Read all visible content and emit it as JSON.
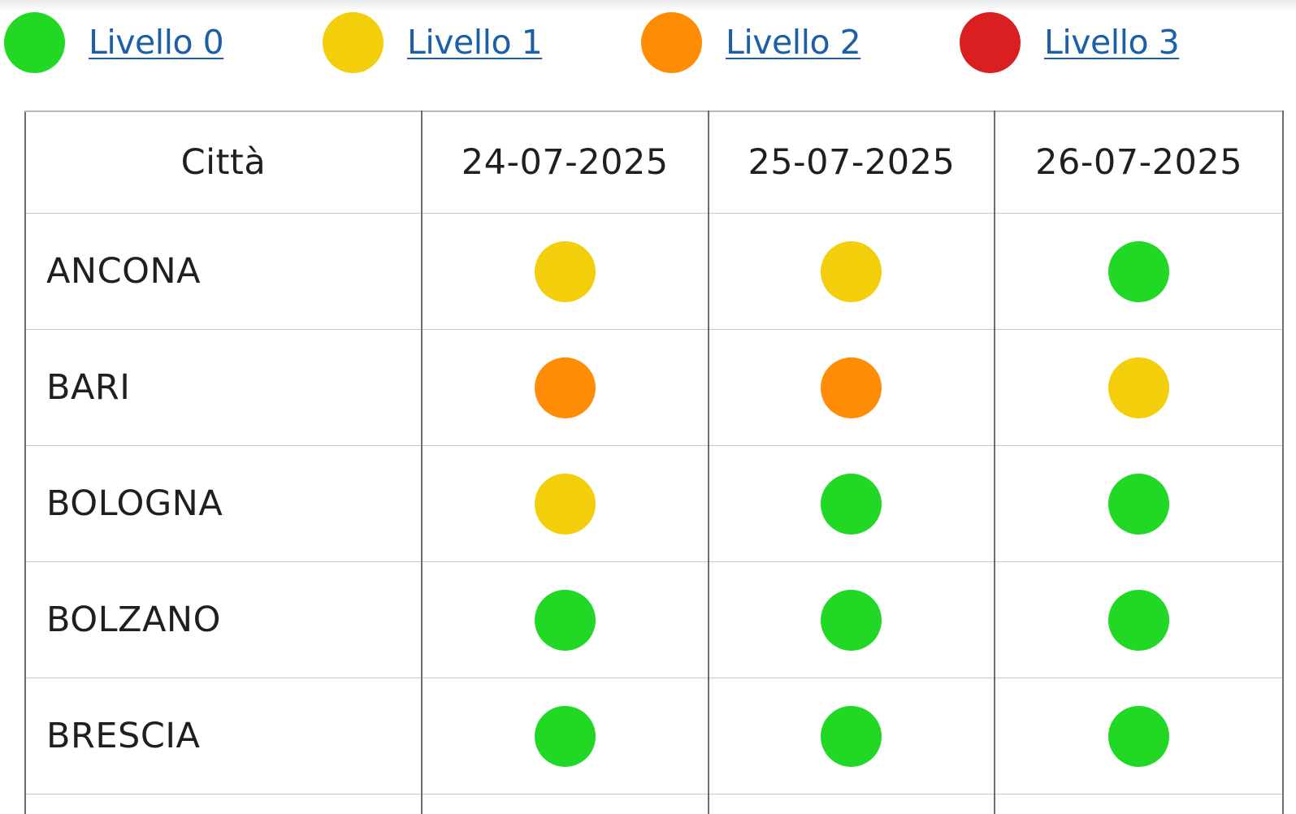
{
  "colors": {
    "level0": "#21d924",
    "level1": "#f2cf0a",
    "level2": "#ff8c05",
    "level3": "#d91f1f"
  },
  "legend": [
    {
      "label": "Livello 0",
      "level": 0
    },
    {
      "label": "Livello 1",
      "level": 1
    },
    {
      "label": "Livello 2",
      "level": 2
    },
    {
      "label": "Livello 3",
      "level": 3
    }
  ],
  "table": {
    "headers": [
      "Città",
      "24-07-2025",
      "25-07-2025",
      "26-07-2025"
    ],
    "rows": [
      {
        "city": "ANCONA",
        "levels": [
          1,
          1,
          0
        ]
      },
      {
        "city": "BARI",
        "levels": [
          2,
          2,
          1
        ]
      },
      {
        "city": "BOLOGNA",
        "levels": [
          1,
          0,
          0
        ]
      },
      {
        "city": "BOLZANO",
        "levels": [
          0,
          0,
          0
        ]
      },
      {
        "city": "BRESCIA",
        "levels": [
          0,
          0,
          0
        ]
      }
    ]
  }
}
